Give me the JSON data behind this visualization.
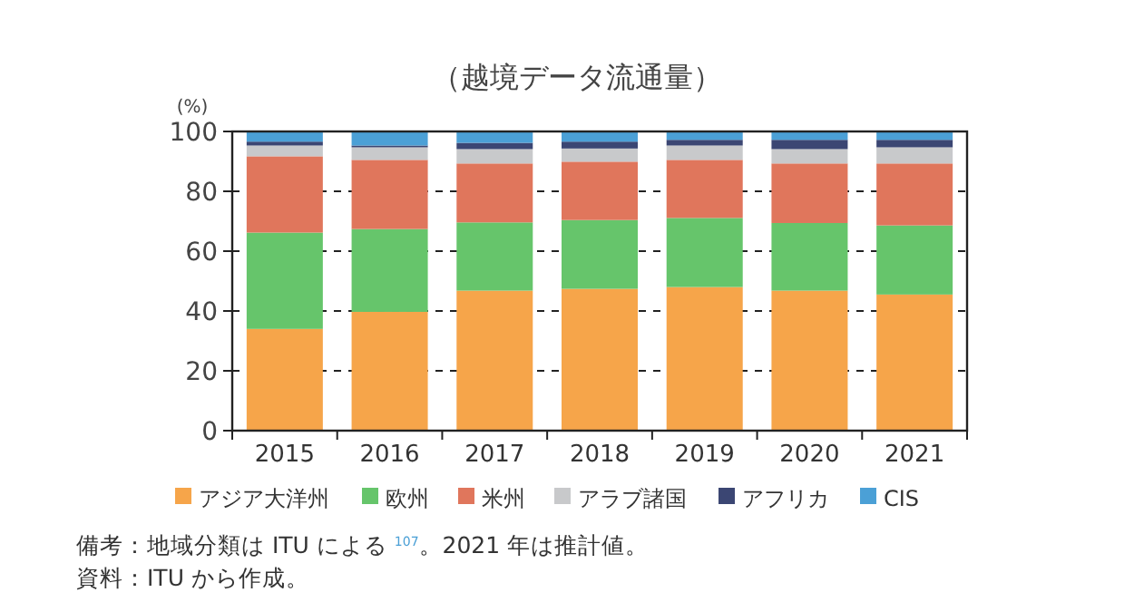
{
  "chart_data": {
    "type": "bar",
    "stacked": true,
    "title": "（越境データ流通量）",
    "ylabel": "(%)",
    "categories": [
      "2015",
      "2016",
      "2017",
      "2018",
      "2019",
      "2020",
      "2021"
    ],
    "series": [
      {
        "name": "アジア大洋州",
        "color": "#f6a54a",
        "values": [
          34.0,
          39.7,
          46.8,
          47.4,
          48.0,
          46.8,
          45.5
        ]
      },
      {
        "name": "欧州",
        "color": "#66c56b",
        "values": [
          32.2,
          27.7,
          22.8,
          23.0,
          23.1,
          22.6,
          23.1
        ]
      },
      {
        "name": "米州",
        "color": "#e0765c",
        "values": [
          25.5,
          23.1,
          19.7,
          19.5,
          19.4,
          19.9,
          20.7
        ]
      },
      {
        "name": "アラブ諸国",
        "color": "#c8c9cb",
        "values": [
          3.6,
          4.2,
          4.8,
          4.4,
          4.8,
          4.8,
          5.4
        ]
      },
      {
        "name": "アフリカ",
        "color": "#3b4673",
        "values": [
          1.3,
          0.6,
          2.1,
          2.3,
          1.9,
          3.1,
          2.5
        ]
      },
      {
        "name": "CIS",
        "color": "#4ba0d6",
        "values": [
          3.4,
          4.7,
          3.8,
          3.4,
          2.8,
          2.8,
          2.8
        ]
      }
    ],
    "ylim": [
      0,
      100
    ],
    "yticks": [
      0,
      20,
      40,
      60,
      80,
      100
    ],
    "grid": "y",
    "legend": "bottom",
    "annotations": [
      "備考：地域分類は ITU による $^{107}$。2021 年は推計値。",
      "資料：ITU から作成。"
    ]
  }
}
